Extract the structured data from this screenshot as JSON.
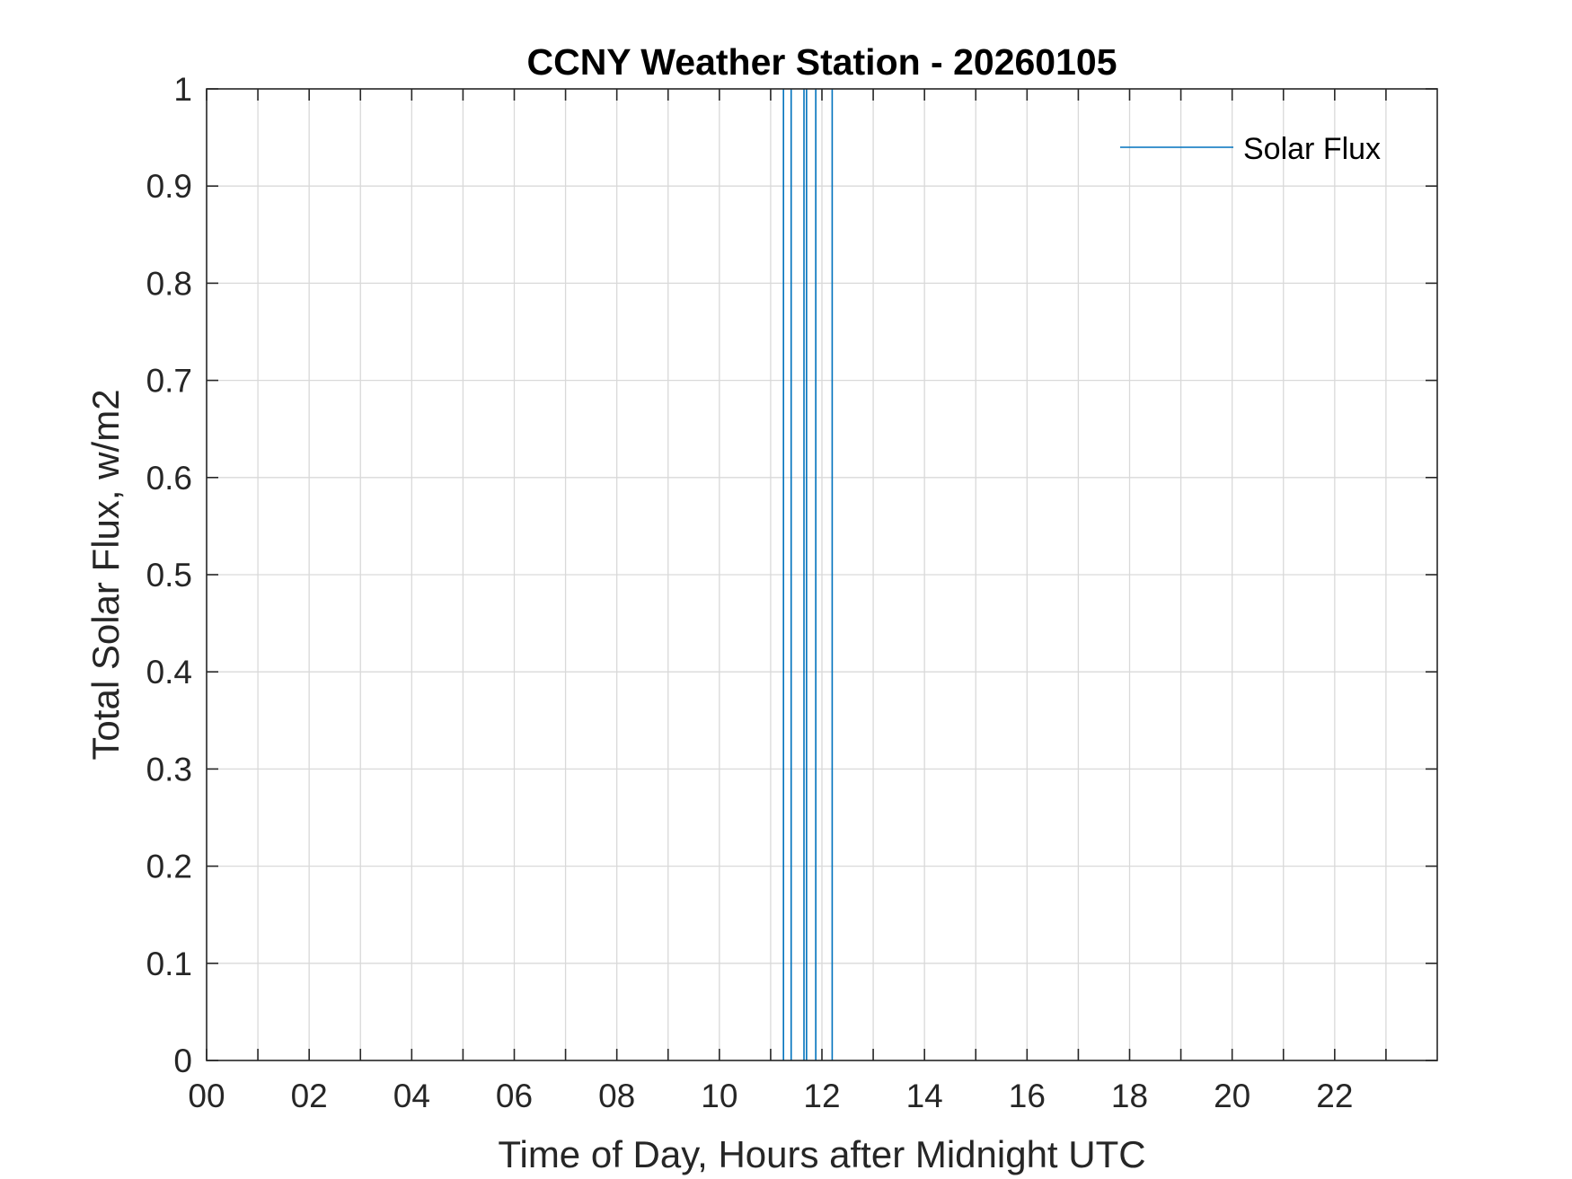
{
  "chart_data": {
    "type": "line",
    "title": "CCNY Weather Station - 20260105",
    "xlabel": "Time of Day, Hours after Midnight UTC",
    "ylabel": "Total Solar Flux, w/m2",
    "xlim": [
      0,
      24
    ],
    "ylim": [
      0,
      1
    ],
    "x_major_ticks": [
      0,
      2,
      4,
      6,
      8,
      10,
      12,
      14,
      16,
      18,
      20,
      22
    ],
    "x_tick_labels": [
      "00",
      "02",
      "04",
      "06",
      "08",
      "10",
      "12",
      "14",
      "16",
      "18",
      "20",
      "22"
    ],
    "x_minor_ticks": [
      1,
      3,
      5,
      7,
      9,
      11,
      13,
      15,
      17,
      19,
      21,
      23
    ],
    "y_ticks": [
      0,
      0.1,
      0.2,
      0.3,
      0.4,
      0.5,
      0.6,
      0.7,
      0.8,
      0.9,
      1
    ],
    "y_tick_labels": [
      "0",
      "0.1",
      "0.2",
      "0.3",
      "0.4",
      "0.5",
      "0.6",
      "0.7",
      "0.8",
      "0.9",
      "1"
    ],
    "grid": true,
    "legend": {
      "position": "top-right",
      "entries": [
        "Solar Flux"
      ]
    },
    "series": [
      {
        "name": "Solar Flux",
        "color": "#0072bd",
        "spikes_x": [
          11.25,
          11.4,
          11.65,
          11.7,
          11.88,
          12.2
        ],
        "spike_range_y": [
          0,
          1
        ]
      }
    ]
  }
}
